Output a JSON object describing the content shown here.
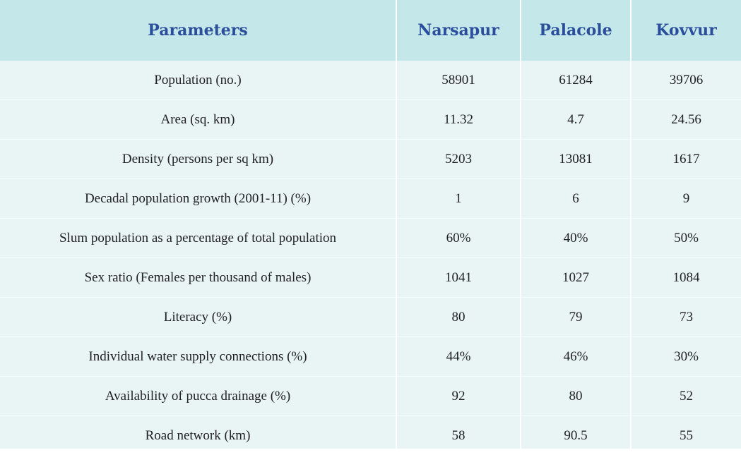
{
  "table": {
    "headers": [
      "Parameters",
      "Narsapur",
      "Palacole",
      "Kovvur"
    ],
    "rows": [
      [
        "Population (no.)",
        "58901",
        "61284",
        "39706"
      ],
      [
        "Area (sq. km)",
        "11.32",
        "4.7",
        "24.56"
      ],
      [
        "Density (persons per sq km)",
        "5203",
        "13081",
        "1617"
      ],
      [
        "Decadal population growth (2001-11) (%)",
        "1",
        "6",
        "9"
      ],
      [
        "Slum population as a percentage of total population",
        "60%",
        "40%",
        "50%"
      ],
      [
        "Sex ratio (Females per thousand of males)",
        "1041",
        "1027",
        "1084"
      ],
      [
        "Literacy (%)",
        "80",
        "79",
        "73"
      ],
      [
        "Individual water supply connections (%)",
        "44%",
        "46%",
        "30%"
      ],
      [
        "Availability of pucca drainage (%)",
        "92",
        "80",
        "52"
      ],
      [
        "Road network (km)",
        "58",
        "90.5",
        "55"
      ]
    ]
  },
  "colors": {
    "header_bg": "#c4e8e9",
    "header_text": "#2a4e9b",
    "body_bg": "#e9f5f5",
    "divider": "#ffffff"
  }
}
